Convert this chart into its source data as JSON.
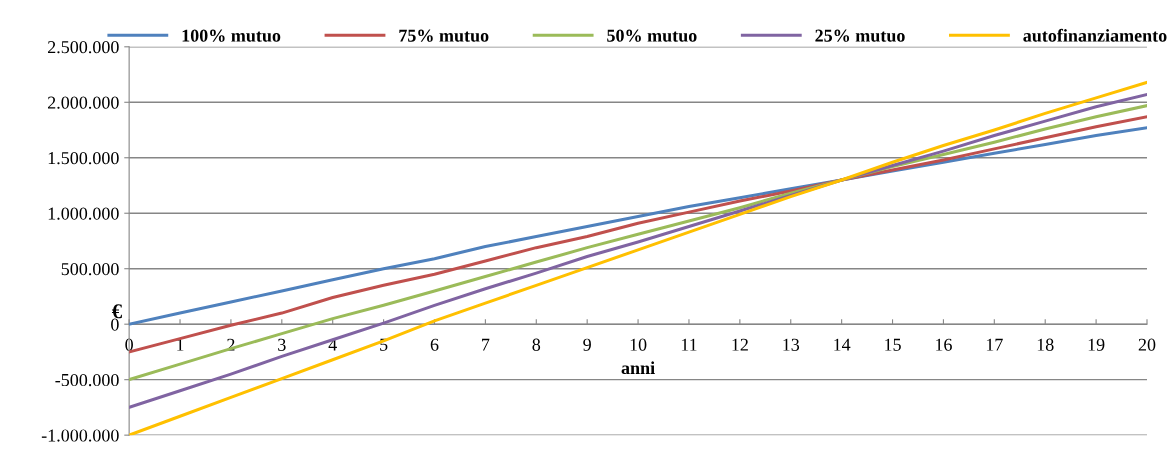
{
  "chart_data": {
    "type": "line",
    "xlabel": "anni",
    "ylabel": "€",
    "x": [
      0,
      1,
      2,
      3,
      4,
      5,
      6,
      7,
      8,
      9,
      10,
      11,
      12,
      13,
      14,
      15,
      16,
      17,
      18,
      19,
      20
    ],
    "series": [
      {
        "name": "100% mutuo",
        "color": "#4f81bd",
        "values": [
          0,
          100000,
          200000,
          300000,
          400000,
          500000,
          590000,
          700000,
          790000,
          880000,
          970000,
          1060000,
          1140000,
          1220000,
          1300000,
          1380000,
          1460000,
          1540000,
          1620000,
          1700000,
          1770000
        ]
      },
      {
        "name": "75% mutuo",
        "color": "#c0504d",
        "values": [
          -250000,
          -130000,
          -10000,
          100000,
          240000,
          350000,
          450000,
          570000,
          690000,
          790000,
          910000,
          1010000,
          1110000,
          1200000,
          1300000,
          1390000,
          1480000,
          1580000,
          1680000,
          1780000,
          1870000
        ]
      },
      {
        "name": "50% mutuo",
        "color": "#9bbb59",
        "values": [
          -500000,
          -360000,
          -220000,
          -85000,
          50000,
          170000,
          300000,
          430000,
          560000,
          690000,
          810000,
          930000,
          1050000,
          1180000,
          1300000,
          1420000,
          1530000,
          1640000,
          1760000,
          1870000,
          1970000
        ]
      },
      {
        "name": "25% mutuo",
        "color": "#8064a2",
        "values": [
          -750000,
          -600000,
          -450000,
          -290000,
          -140000,
          10000,
          170000,
          320000,
          460000,
          610000,
          740000,
          880000,
          1020000,
          1160000,
          1300000,
          1430000,
          1560000,
          1700000,
          1830000,
          1960000,
          2070000
        ]
      },
      {
        "name": "autofinanziamento",
        "color": "#ffc000",
        "values": [
          -1000000,
          -830000,
          -660000,
          -490000,
          -320000,
          -150000,
          30000,
          190000,
          350000,
          510000,
          670000,
          830000,
          990000,
          1150000,
          1300000,
          1460000,
          1610000,
          1750000,
          1900000,
          2040000,
          2180000
        ]
      }
    ],
    "xlim": [
      0,
      20
    ],
    "xticks": [
      0,
      1,
      2,
      3,
      4,
      5,
      6,
      7,
      8,
      9,
      10,
      11,
      12,
      13,
      14,
      15,
      16,
      17,
      18,
      19,
      20
    ],
    "ylim": [
      -1000000,
      2500000
    ],
    "yticks": [
      {
        "value": -1000000,
        "label": "-1.000.000"
      },
      {
        "value": -500000,
        "label": "-500.000"
      },
      {
        "value": 0,
        "label": "0"
      },
      {
        "value": 500000,
        "label": "500.000"
      },
      {
        "value": 1000000,
        "label": "1.000.000"
      },
      {
        "value": 1500000,
        "label": "1.500.000"
      },
      {
        "value": 2000000,
        "label": "2.000.000"
      },
      {
        "value": 2500000,
        "label": "2.500.000"
      }
    ],
    "grid": "y",
    "legend": "top",
    "marker": "none",
    "line_style": "solid"
  }
}
